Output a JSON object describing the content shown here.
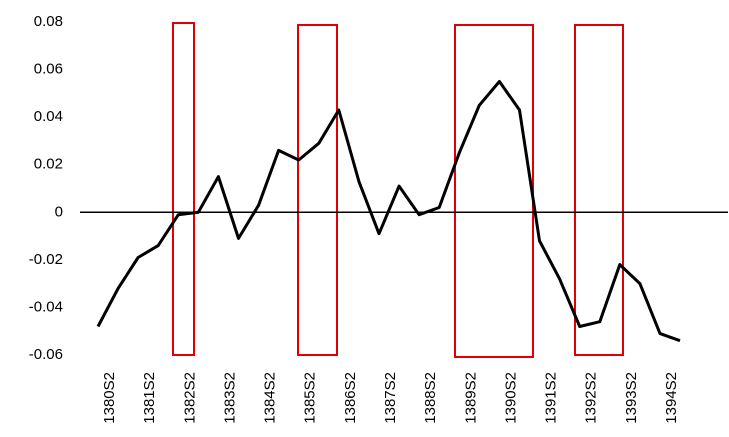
{
  "chart_data": {
    "type": "line",
    "categories": [
      null,
      "1380S2",
      null,
      "1381S2",
      null,
      "1382S2",
      null,
      "1383S2",
      null,
      "1384S2",
      null,
      "1385S2",
      null,
      "1386S2",
      null,
      "1387S2",
      null,
      "1388S2",
      null,
      "1389S2",
      null,
      "1390S2",
      null,
      "1391S2",
      null,
      "1392S2",
      null,
      "1393S2",
      null,
      "1394S2"
    ],
    "values": [
      -0.048,
      -0.032,
      -0.019,
      -0.014,
      -0.001,
      0,
      0.015,
      -0.011,
      0.003,
      0.026,
      0.022,
      0.029,
      0.043,
      0.013,
      -0.009,
      0.011,
      -0.001,
      0.002,
      0.025,
      0.045,
      0.055,
      0.043,
      -0.012,
      -0.028,
      -0.048,
      -0.046,
      -0.022,
      -0.03,
      -0.051,
      -0.054
    ],
    "color": "#000000",
    "ylim": [
      -0.06,
      0.08
    ],
    "yticks": [
      -0.06,
      -0.04,
      -0.02,
      0,
      0.02,
      0.04,
      0.06,
      0.08
    ],
    "grid": false
  }
}
